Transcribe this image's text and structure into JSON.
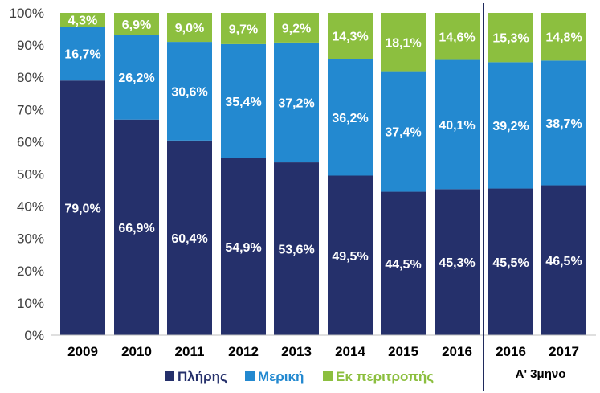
{
  "chart_data": {
    "type": "bar",
    "stacked": true,
    "categories": [
      "2009",
      "2010",
      "2011",
      "2012",
      "2013",
      "2014",
      "2015",
      "2016",
      "2016",
      "2017"
    ],
    "group_label": "Α' 3μηνο",
    "series": [
      {
        "name": "Πλήρης",
        "color": "#25306b",
        "values": [
          79.0,
          66.9,
          60.4,
          54.9,
          53.6,
          49.5,
          44.5,
          45.3,
          45.5,
          46.5
        ],
        "labels": [
          "79,0%",
          "66,9%",
          "60,4%",
          "54,9%",
          "53,6%",
          "49,5%",
          "44,5%",
          "45,3%",
          "45,5%",
          "46,5%"
        ]
      },
      {
        "name": "Μερική",
        "color": "#2389d0",
        "values": [
          16.7,
          26.2,
          30.6,
          35.4,
          37.2,
          36.2,
          37.4,
          40.1,
          39.2,
          38.7
        ],
        "labels": [
          "16,7%",
          "26,2%",
          "30,6%",
          "35,4%",
          "37,2%",
          "36,2%",
          "37,4%",
          "40,1%",
          "39,2%",
          "38,7%"
        ]
      },
      {
        "name": "Εκ περιτροπής",
        "color": "#8cbf3f",
        "values": [
          4.3,
          6.9,
          9.0,
          9.7,
          9.2,
          14.3,
          18.1,
          14.6,
          15.3,
          14.8
        ],
        "labels": [
          "4,3%",
          "6,9%",
          "9,0%",
          "9,7%",
          "9,2%",
          "14,3%",
          "18,1%",
          "14,6%",
          "15,3%",
          "14,8%"
        ]
      }
    ],
    "y_ticks": [
      "0%",
      "10%",
      "20%",
      "30%",
      "40%",
      "50%",
      "60%",
      "70%",
      "80%",
      "90%",
      "100%"
    ],
    "ylim": [
      0,
      100
    ],
    "legend_position": "bottom",
    "grid": false
  }
}
